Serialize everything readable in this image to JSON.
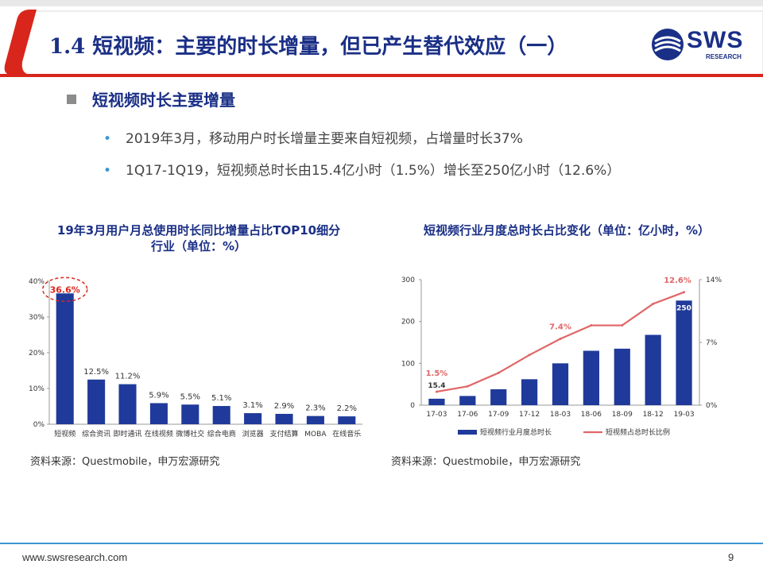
{
  "header": {
    "title": "1.4 短视频：主要的时长增量，但已产生替代效应（一）",
    "logo_text": "SWS",
    "logo_sub": "RESEARCH"
  },
  "section": {
    "heading": "短视频时长主要增量",
    "bullets": [
      "2019年3月，移动用户时长增量主要来自短视频，占增量时长37%",
      "1Q17-1Q19，短视频总时长由15.4亿小时（1.5%）增长至250亿小时（12.6%）"
    ]
  },
  "chart_data": [
    {
      "type": "bar",
      "title_line1": "19年3月用户月总使用时长同比增量占比TOP10细分",
      "title_line2": "行业（单位：%）",
      "categories": [
        "短视频",
        "综合资讯",
        "即时通讯",
        "在线视频",
        "微博社交",
        "综合电商",
        "浏览器",
        "支付结算",
        "MOBA",
        "在线音乐"
      ],
      "values": [
        36.6,
        12.5,
        11.2,
        5.9,
        5.5,
        5.1,
        3.1,
        2.9,
        2.3,
        2.2
      ],
      "data_labels": [
        "36.6%",
        "12.5%",
        "11.2%",
        "5.9%",
        "5.5%",
        "5.1%",
        "3.1%",
        "2.9%",
        "2.3%",
        "2.2%"
      ],
      "yticks": [
        "0%",
        "10%",
        "20%",
        "30%",
        "40%"
      ],
      "ylim": [
        0,
        40
      ],
      "highlight_index": 0,
      "bar_color": "#1f3a9a",
      "highlight_color": "#d9261c"
    },
    {
      "type": "bar+line",
      "title": "短视频行业月度总时长占比变化（单位：亿小时，%）",
      "categories": [
        "17-03",
        "17-06",
        "17-09",
        "17-12",
        "18-03",
        "18-06",
        "18-09",
        "18-12",
        "19-03"
      ],
      "series": [
        {
          "name": "短视频行业月度总时长",
          "kind": "bar",
          "axis": "left",
          "values": [
            15.4,
            22,
            38,
            62,
            100,
            130,
            135,
            168,
            250
          ],
          "color": "#1f3a9a"
        },
        {
          "name": "短视频占总时长比例",
          "kind": "line",
          "axis": "right",
          "values": [
            1.5,
            2.1,
            3.6,
            5.6,
            7.4,
            8.9,
            8.9,
            11.3,
            12.6
          ],
          "color": "#e06666"
        }
      ],
      "bar_labels": [
        {
          "index": 0,
          "text": "15.4"
        },
        {
          "index": 8,
          "text": "250"
        }
      ],
      "line_labels": [
        {
          "index": 0,
          "text": "1.5%"
        },
        {
          "index": 4,
          "text": "7.4%"
        },
        {
          "index": 8,
          "text": "12.6%"
        }
      ],
      "y_left_ticks": [
        "0",
        "100",
        "200",
        "300"
      ],
      "y_left_lim": [
        0,
        300
      ],
      "y_right_ticks": [
        "0%",
        "7%",
        "14%"
      ],
      "y_right_lim": [
        0,
        14
      ],
      "legend_position": "bottom"
    }
  ],
  "sources": {
    "left": "资料来源：Questmobile，申万宏源研究",
    "right": "资料来源：Questmobile，申万宏源研究"
  },
  "footer": {
    "url": "www.swsresearch.com",
    "page": "9"
  }
}
